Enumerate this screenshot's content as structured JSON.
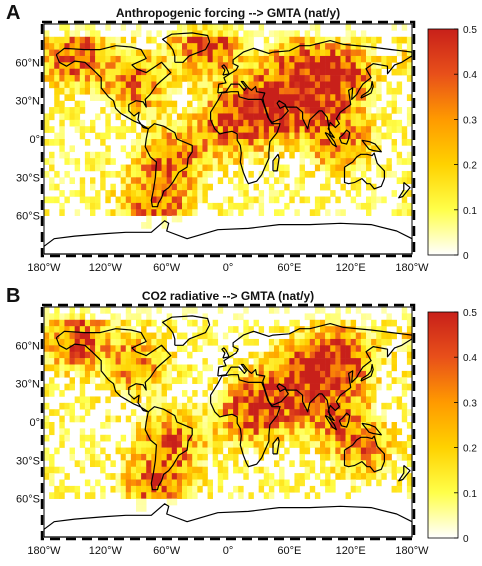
{
  "chart_data": [
    {
      "type": "heatmap",
      "panel_label": "A",
      "title": "Anthropogenic forcing --> GMTA (nat/y)",
      "xlabel": "",
      "ylabel": "",
      "x_ticks": [
        "180°W",
        "120°W",
        "60°W",
        "0°",
        "60°E",
        "120°E",
        "180°W"
      ],
      "y_ticks": [
        "60°N",
        "30°N",
        "0°",
        "30°S",
        "60°S"
      ],
      "xlim": [
        -180,
        180
      ],
      "ylim": [
        -90,
        90
      ],
      "colorbar": {
        "min": 0,
        "max": 0.5,
        "ticks": [
          "0",
          "0.1",
          "0.2",
          "0.3",
          "0.4",
          "0.5"
        ],
        "colors": [
          "#ffffff",
          "#ffff4a",
          "#ffd200",
          "#ff9a00",
          "#e8501a",
          "#c8201a"
        ]
      },
      "hotspots": [
        {
          "lat": 50,
          "lon": 110,
          "value": 0.4
        },
        {
          "lat": 55,
          "lon": 70,
          "value": 0.3
        },
        {
          "lat": 30,
          "lon": 80,
          "value": 0.3
        },
        {
          "lat": 10,
          "lon": 0,
          "value": 0.33
        },
        {
          "lat": 20,
          "lon": 45,
          "value": 0.3
        },
        {
          "lat": 0,
          "lon": 110,
          "value": 0.32
        },
        {
          "lat": 65,
          "lon": -150,
          "value": 0.35
        },
        {
          "lat": 45,
          "lon": -90,
          "value": 0.28
        },
        {
          "lat": -15,
          "lon": -55,
          "value": 0.3
        },
        {
          "lat": -50,
          "lon": -70,
          "value": 0.35
        },
        {
          "lat": 30,
          "lon": 30,
          "value": 0.28
        },
        {
          "lat": 75,
          "lon": -20,
          "value": 0.4
        }
      ]
    },
    {
      "type": "heatmap",
      "panel_label": "B",
      "title": "CO2 radiative --> GMTA (nat/y)",
      "xlabel": "",
      "ylabel": "",
      "x_ticks": [
        "180°W",
        "120°W",
        "60°W",
        "0°",
        "60°E",
        "120°E",
        "180°W"
      ],
      "y_ticks": [
        "60°N",
        "30°N",
        "0°",
        "30°S",
        "60°S"
      ],
      "xlim": [
        -180,
        180
      ],
      "ylim": [
        -90,
        90
      ],
      "colorbar": {
        "min": 0,
        "max": 0.5,
        "ticks": [
          "0",
          "0.1",
          "0.2",
          "0.3",
          "0.4",
          "0.5"
        ],
        "colors": [
          "#ffffff",
          "#ffff4a",
          "#ffd200",
          "#ff9a00",
          "#e8501a",
          "#c8201a"
        ]
      },
      "hotspots": [
        {
          "lat": 50,
          "lon": 110,
          "value": 0.42
        },
        {
          "lat": 40,
          "lon": 75,
          "value": 0.33
        },
        {
          "lat": 10,
          "lon": 100,
          "value": 0.35
        },
        {
          "lat": 5,
          "lon": 20,
          "value": 0.3
        },
        {
          "lat": 20,
          "lon": 45,
          "value": 0.3
        },
        {
          "lat": 65,
          "lon": -150,
          "value": 0.35
        },
        {
          "lat": 45,
          "lon": -90,
          "value": 0.25
        },
        {
          "lat": -15,
          "lon": -55,
          "value": 0.28
        },
        {
          "lat": -50,
          "lon": -70,
          "value": 0.32
        },
        {
          "lat": -20,
          "lon": 130,
          "value": 0.25
        }
      ]
    }
  ]
}
